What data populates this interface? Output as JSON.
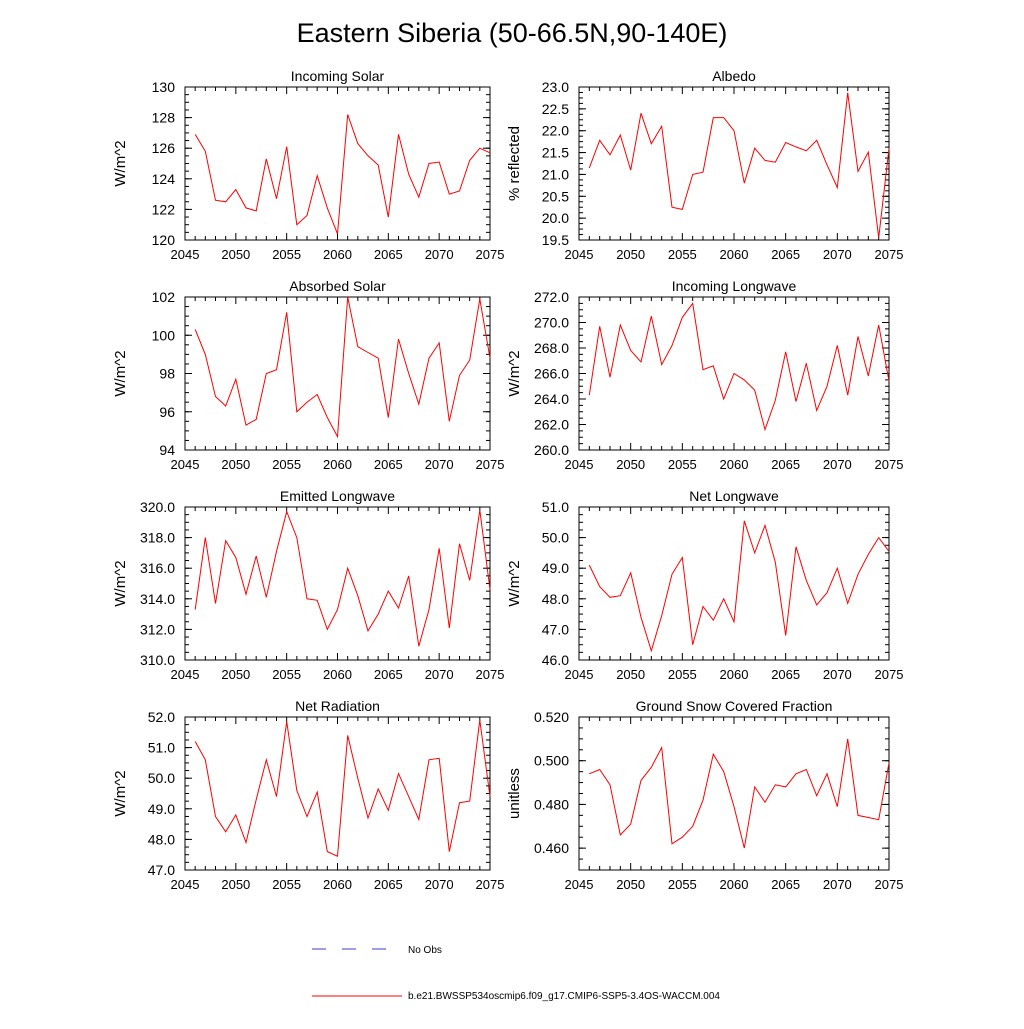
{
  "title": "Eastern Siberia (50-66.5N,90-140E)",
  "colors": {
    "series": "#ff0000",
    "obs": "#3b3bd6",
    "axis": "#000000"
  },
  "legend": {
    "obs_label": "No Obs",
    "model_label": "b.e21.BWSSP534oscmip6.f09_g17.CMIP6-SSP5-3.4OS-WACCM.004"
  },
  "chart_data": [
    {
      "type": "line",
      "title": "Incoming Solar",
      "ylabel": "W/m^2",
      "xlim": [
        2045,
        2075
      ],
      "ylim": [
        120,
        130
      ],
      "xticks": [
        2045,
        2050,
        2055,
        2060,
        2065,
        2070,
        2075
      ],
      "yticks": [
        "120",
        "122",
        "124",
        "126",
        "128",
        "130"
      ],
      "ytick_values": [
        120,
        122,
        124,
        126,
        128,
        130
      ],
      "x": [
        2046,
        2047,
        2048,
        2049,
        2050,
        2051,
        2052,
        2053,
        2054,
        2055,
        2056,
        2057,
        2058,
        2059,
        2060,
        2061,
        2062,
        2063,
        2064,
        2065,
        2066,
        2067,
        2068,
        2069,
        2070,
        2071,
        2072,
        2073,
        2074,
        2075
      ],
      "series": [
        {
          "name": "b.e21.BWSSP534oscmip6.f09_g17.CMIP6-SSP5-3.4OS-WACCM.004",
          "values": [
            126.9,
            125.8,
            122.6,
            122.5,
            123.3,
            122.1,
            121.9,
            125.3,
            122.7,
            126.1,
            121.0,
            121.6,
            124.2,
            122.1,
            120.4,
            128.2,
            126.3,
            125.5,
            124.9,
            121.5,
            126.9,
            124.3,
            122.8,
            125.0,
            125.1,
            123.0,
            123.2,
            125.2,
            126.0,
            125.7
          ]
        }
      ]
    },
    {
      "type": "line",
      "title": "Albedo",
      "ylabel": "% reflected",
      "xlim": [
        2045,
        2075
      ],
      "ylim": [
        19.5,
        23.0
      ],
      "xticks": [
        2045,
        2050,
        2055,
        2060,
        2065,
        2070,
        2075
      ],
      "yticks": [
        "19.5",
        "20.0",
        "20.5",
        "21.0",
        "21.5",
        "22.0",
        "22.5",
        "23.0"
      ],
      "ytick_values": [
        19.5,
        20.0,
        20.5,
        21.0,
        21.5,
        22.0,
        22.5,
        23.0
      ],
      "x": [
        2046,
        2047,
        2048,
        2049,
        2050,
        2051,
        2052,
        2053,
        2054,
        2055,
        2056,
        2057,
        2058,
        2059,
        2060,
        2061,
        2062,
        2063,
        2064,
        2065,
        2066,
        2067,
        2068,
        2069,
        2070,
        2071,
        2072,
        2073,
        2074,
        2075
      ],
      "series": [
        {
          "name": "b.e21.BWSSP534oscmip6.f09_g17.CMIP6-SSP5-3.4OS-WACCM.004",
          "values": [
            21.15,
            21.78,
            21.45,
            21.9,
            21.1,
            22.4,
            21.7,
            22.1,
            20.25,
            20.2,
            21.0,
            21.05,
            22.3,
            22.3,
            22.0,
            20.8,
            21.6,
            21.32,
            21.28,
            21.73,
            21.63,
            21.54,
            21.78,
            21.22,
            20.7,
            22.87,
            21.07,
            21.51,
            19.55,
            21.6
          ]
        }
      ]
    },
    {
      "type": "line",
      "title": "Absorbed Solar",
      "ylabel": "W/m^2",
      "xlim": [
        2045,
        2075
      ],
      "ylim": [
        94,
        102
      ],
      "xticks": [
        2045,
        2050,
        2055,
        2060,
        2065,
        2070,
        2075
      ],
      "yticks": [
        "94",
        "96",
        "98",
        "100",
        "102"
      ],
      "ytick_values": [
        94,
        96,
        98,
        100,
        102
      ],
      "x": [
        2046,
        2047,
        2048,
        2049,
        2050,
        2051,
        2052,
        2053,
        2054,
        2055,
        2056,
        2057,
        2058,
        2059,
        2060,
        2061,
        2062,
        2063,
        2064,
        2065,
        2066,
        2067,
        2068,
        2069,
        2070,
        2071,
        2072,
        2073,
        2074,
        2075
      ],
      "series": [
        {
          "name": "b.e21.BWSSP534oscmip6.f09_g17.CMIP6-SSP5-3.4OS-WACCM.004",
          "values": [
            100.3,
            99.0,
            96.8,
            96.3,
            97.7,
            95.3,
            95.6,
            98.0,
            98.2,
            101.2,
            96.0,
            96.5,
            96.9,
            95.7,
            94.7,
            102.0,
            99.4,
            99.1,
            98.8,
            95.7,
            99.8,
            98.0,
            96.4,
            98.8,
            99.6,
            95.5,
            97.9,
            98.7,
            101.9,
            98.8
          ]
        }
      ]
    },
    {
      "type": "line",
      "title": "Incoming Longwave",
      "ylabel": "W/m^2",
      "xlim": [
        2045,
        2075
      ],
      "ylim": [
        260,
        272
      ],
      "xticks": [
        2045,
        2050,
        2055,
        2060,
        2065,
        2070,
        2075
      ],
      "yticks": [
        "260.0",
        "262.0",
        "264.0",
        "266.0",
        "268.0",
        "270.0",
        "272.0"
      ],
      "ytick_values": [
        260,
        262,
        264,
        266,
        268,
        270,
        272
      ],
      "x": [
        2046,
        2047,
        2048,
        2049,
        2050,
        2051,
        2052,
        2053,
        2054,
        2055,
        2056,
        2057,
        2058,
        2059,
        2060,
        2061,
        2062,
        2063,
        2064,
        2065,
        2066,
        2067,
        2068,
        2069,
        2070,
        2071,
        2072,
        2073,
        2074,
        2075
      ],
      "series": [
        {
          "name": "b.e21.BWSSP534oscmip6.f09_g17.CMIP6-SSP5-3.4OS-WACCM.004",
          "values": [
            264.3,
            269.7,
            265.7,
            269.8,
            267.8,
            266.9,
            270.5,
            266.7,
            268.2,
            270.4,
            271.5,
            266.3,
            266.6,
            264.0,
            266.0,
            265.5,
            264.7,
            261.6,
            263.9,
            267.7,
            263.8,
            266.8,
            263.1,
            265.0,
            268.2,
            264.3,
            268.9,
            265.8,
            269.8,
            265.4
          ]
        }
      ]
    },
    {
      "type": "line",
      "title": "Emitted Longwave",
      "ylabel": "W/m^2",
      "xlim": [
        2045,
        2075
      ],
      "ylim": [
        310,
        320
      ],
      "xticks": [
        2045,
        2050,
        2055,
        2060,
        2065,
        2070,
        2075
      ],
      "yticks": [
        "310.0",
        "312.0",
        "314.0",
        "316.0",
        "318.0",
        "320.0"
      ],
      "ytick_values": [
        310,
        312,
        314,
        316,
        318,
        320
      ],
      "x": [
        2046,
        2047,
        2048,
        2049,
        2050,
        2051,
        2052,
        2053,
        2054,
        2055,
        2056,
        2057,
        2058,
        2059,
        2060,
        2061,
        2062,
        2063,
        2064,
        2065,
        2066,
        2067,
        2068,
        2069,
        2070,
        2071,
        2072,
        2073,
        2074,
        2075
      ],
      "series": [
        {
          "name": "b.e21.BWSSP534oscmip6.f09_g17.CMIP6-SSP5-3.4OS-WACCM.004",
          "values": [
            313.3,
            318.0,
            313.7,
            317.8,
            316.7,
            314.3,
            316.8,
            314.1,
            317.1,
            319.7,
            318.0,
            314.0,
            313.9,
            312.0,
            313.3,
            316.0,
            314.2,
            311.9,
            313.0,
            314.5,
            313.4,
            315.5,
            310.9,
            313.3,
            317.3,
            312.1,
            317.6,
            315.2,
            319.8,
            314.6
          ]
        }
      ]
    },
    {
      "type": "line",
      "title": "Net Longwave",
      "ylabel": "W/m^2",
      "xlim": [
        2045,
        2075
      ],
      "ylim": [
        46,
        51
      ],
      "xticks": [
        2045,
        2050,
        2055,
        2060,
        2065,
        2070,
        2075
      ],
      "yticks": [
        "46.0",
        "47.0",
        "48.0",
        "49.0",
        "50.0",
        "51.0"
      ],
      "ytick_values": [
        46,
        47,
        48,
        49,
        50,
        51
      ],
      "x": [
        2046,
        2047,
        2048,
        2049,
        2050,
        2051,
        2052,
        2053,
        2054,
        2055,
        2056,
        2057,
        2058,
        2059,
        2060,
        2061,
        2062,
        2063,
        2064,
        2065,
        2066,
        2067,
        2068,
        2069,
        2070,
        2071,
        2072,
        2073,
        2074,
        2075
      ],
      "series": [
        {
          "name": "b.e21.BWSSP534oscmip6.f09_g17.CMIP6-SSP5-3.4OS-WACCM.004",
          "values": [
            49.1,
            48.4,
            48.05,
            48.1,
            48.85,
            47.4,
            46.3,
            47.45,
            48.8,
            49.35,
            46.5,
            47.75,
            47.3,
            48.0,
            47.25,
            50.55,
            49.5,
            50.4,
            49.2,
            46.8,
            49.7,
            48.6,
            47.8,
            48.2,
            49.0,
            47.85,
            48.8,
            49.45,
            50.0,
            49.55
          ]
        }
      ]
    },
    {
      "type": "line",
      "title": "Net Radiation",
      "ylabel": "W/m^2",
      "xlim": [
        2045,
        2075
      ],
      "ylim": [
        47,
        52
      ],
      "xticks": [
        2045,
        2050,
        2055,
        2060,
        2065,
        2070,
        2075
      ],
      "yticks": [
        "47.0",
        "48.0",
        "49.0",
        "50.0",
        "51.0",
        "52.0"
      ],
      "ytick_values": [
        47,
        48,
        49,
        50,
        51,
        52
      ],
      "x": [
        2046,
        2047,
        2048,
        2049,
        2050,
        2051,
        2052,
        2053,
        2054,
        2055,
        2056,
        2057,
        2058,
        2059,
        2060,
        2061,
        2062,
        2063,
        2064,
        2065,
        2066,
        2067,
        2068,
        2069,
        2070,
        2071,
        2072,
        2073,
        2074,
        2075
      ],
      "series": [
        {
          "name": "b.e21.BWSSP534oscmip6.f09_g17.CMIP6-SSP5-3.4OS-WACCM.004",
          "values": [
            51.2,
            50.6,
            48.75,
            48.25,
            48.8,
            47.9,
            49.3,
            50.6,
            49.4,
            51.85,
            49.6,
            48.75,
            49.55,
            47.6,
            47.45,
            51.4,
            50.0,
            48.7,
            49.65,
            48.95,
            50.15,
            49.4,
            48.65,
            50.6,
            50.65,
            47.6,
            49.2,
            49.25,
            51.9,
            49.4
          ]
        }
      ]
    },
    {
      "type": "line",
      "title": "Ground Snow Covered Fraction",
      "ylabel": "unitless",
      "xlim": [
        2045,
        2075
      ],
      "ylim": [
        0.45,
        0.52
      ],
      "xticks": [
        2045,
        2050,
        2055,
        2060,
        2065,
        2070,
        2075
      ],
      "yticks": [
        "0.460",
        "0.480",
        "0.500",
        "0.520"
      ],
      "ytick_values": [
        0.46,
        0.48,
        0.5,
        0.52
      ],
      "x": [
        2046,
        2047,
        2048,
        2049,
        2050,
        2051,
        2052,
        2053,
        2054,
        2055,
        2056,
        2057,
        2058,
        2059,
        2060,
        2061,
        2062,
        2063,
        2064,
        2065,
        2066,
        2067,
        2068,
        2069,
        2070,
        2071,
        2072,
        2073,
        2074,
        2075
      ],
      "series": [
        {
          "name": "b.e21.BWSSP534oscmip6.f09_g17.CMIP6-SSP5-3.4OS-WACCM.004",
          "values": [
            0.494,
            0.496,
            0.489,
            0.466,
            0.471,
            0.491,
            0.497,
            0.506,
            0.462,
            0.465,
            0.47,
            0.482,
            0.503,
            0.495,
            0.479,
            0.46,
            0.488,
            0.481,
            0.489,
            0.488,
            0.494,
            0.496,
            0.484,
            0.494,
            0.479,
            0.51,
            0.475,
            0.474,
            0.473,
            0.499
          ]
        }
      ]
    }
  ]
}
